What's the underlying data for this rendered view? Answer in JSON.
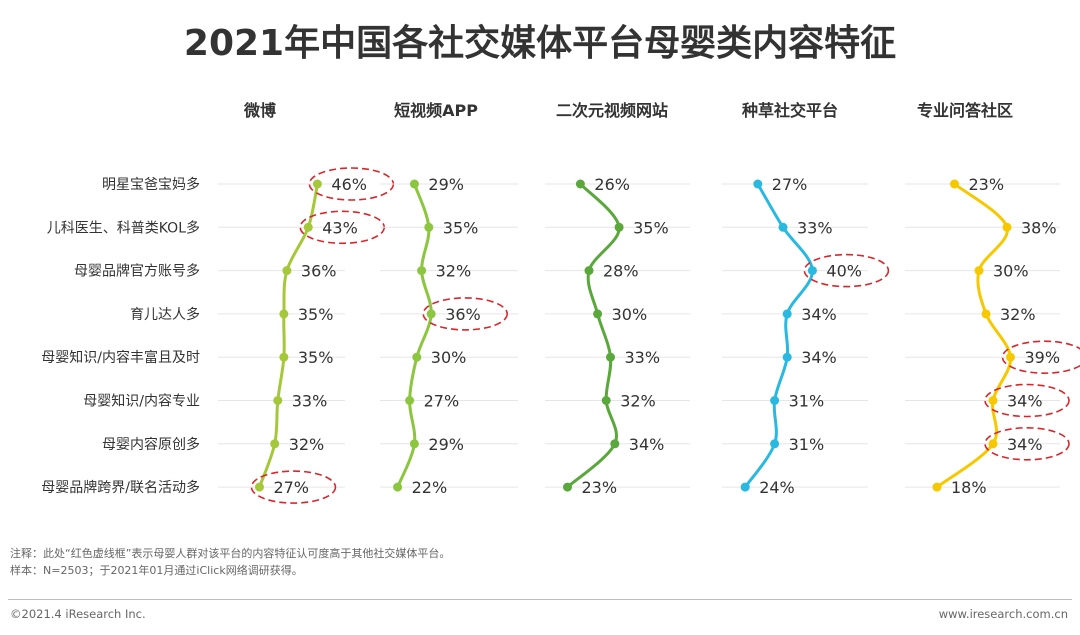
{
  "title": "2021年中国各社交媒体平台母婴类内容特征",
  "chart_data": {
    "type": "line",
    "orientation": "vertical-profile",
    "title": "2021年中国各社交媒体平台母婴类内容特征",
    "categories": [
      "明星宝爸宝妈多",
      "儿科医生、科普类KOL多",
      "母婴品牌官方账号多",
      "育儿达人多",
      "母婴知识/内容丰富且及时",
      "母婴知识/内容专业",
      "母婴内容原创多",
      "母婴品牌跨界/联名活动多"
    ],
    "series": [
      {
        "name": "微博",
        "color": "#a5c83a",
        "values": [
          46,
          43,
          36,
          35,
          35,
          33,
          32,
          27
        ],
        "labels": [
          "46%",
          "43%",
          "36%",
          "35%",
          "35%",
          "33%",
          "32%",
          "27%"
        ],
        "highlighted": [
          0,
          1,
          7
        ]
      },
      {
        "name": "短视频APP",
        "color": "#8cc63f",
        "values": [
          29,
          35,
          32,
          36,
          30,
          27,
          29,
          22
        ],
        "labels": [
          "29%",
          "35%",
          "32%",
          "36%",
          "30%",
          "27%",
          "29%",
          "22%"
        ],
        "highlighted": [
          3
        ]
      },
      {
        "name": "二次元视频网站",
        "color": "#5aa83c",
        "values": [
          26,
          35,
          28,
          30,
          33,
          32,
          34,
          23
        ],
        "labels": [
          "26%",
          "35%",
          "28%",
          "30%",
          "33%",
          "32%",
          "34%",
          "23%"
        ],
        "highlighted": []
      },
      {
        "name": "种草社交平台",
        "color": "#29b8e0",
        "values": [
          27,
          33,
          40,
          34,
          34,
          31,
          31,
          24
        ],
        "labels": [
          "27%",
          "33%",
          "40%",
          "34%",
          "34%",
          "31%",
          "31%",
          "24%"
        ],
        "highlighted": [
          2
        ]
      },
      {
        "name": "专业问答社区",
        "color": "#f5c800",
        "values": [
          23,
          38,
          30,
          32,
          39,
          34,
          34,
          18
        ],
        "labels": [
          "23%",
          "38%",
          "30%",
          "32%",
          "39%",
          "34%",
          "34%",
          "18%"
        ],
        "highlighted": [
          4,
          5,
          6
        ]
      }
    ],
    "highlight_color": "#d9262c"
  },
  "notes": {
    "line1": "注释：此处“红色虚线框”表示母婴人群对该平台的内容特征认可度高于其他社交媒体平台。",
    "line2": "样本：N=2503；于2021年01月通过iClick网络调研获得。"
  },
  "footer": {
    "left": "©2021.4 iResearch Inc.",
    "right": "www.iresearch.com.cn"
  }
}
